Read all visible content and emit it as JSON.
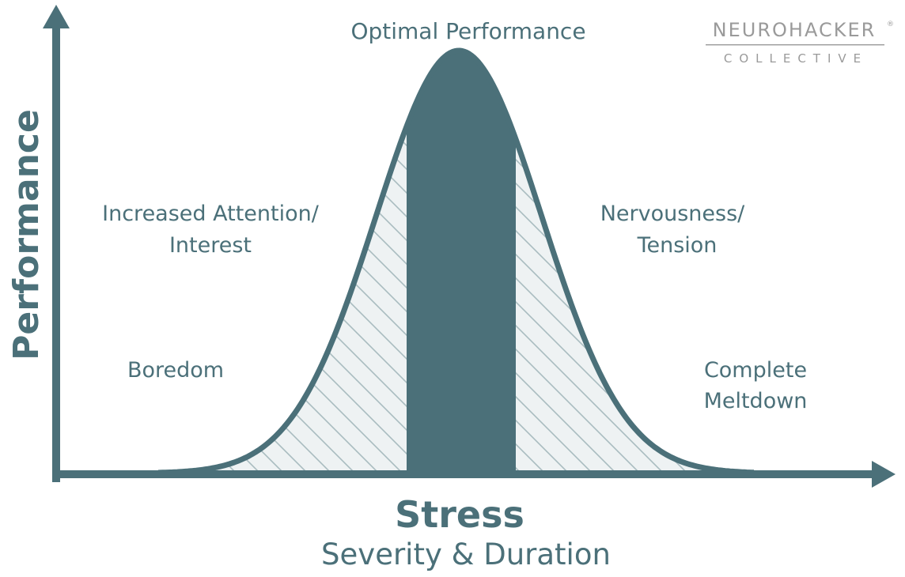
{
  "colors": {
    "accent": "#4b7079",
    "hatch_fill": "#eef2f3",
    "hatch_line": "#a9bcc0",
    "brand_gray": "#9a9a9a"
  },
  "labels": {
    "peak": "Optimal Performance",
    "left_upper_line1": "Increased Attention/",
    "left_upper_line2": "Interest",
    "left_lower": "Boredom",
    "right_upper_line1": "Nervousness/",
    "right_upper_line2": "Tension",
    "right_lower_line1": "Complete",
    "right_lower_line2": "Meltdown"
  },
  "axes": {
    "x_title": "Stress",
    "x_subtitle": "Severity & Duration",
    "y_title": "Performance"
  },
  "logo": {
    "line1": "NEUROHACKER",
    "registered": "®",
    "line2": "COLLECTIVE"
  }
}
